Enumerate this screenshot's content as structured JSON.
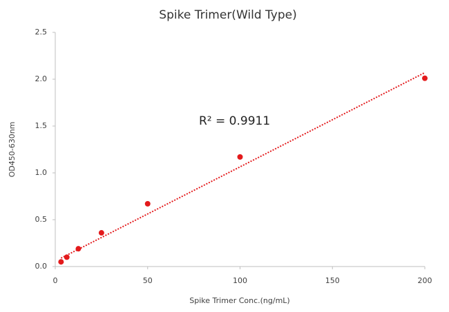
{
  "chart_data": {
    "type": "scatter",
    "title": "Spike Trimer(Wild Type)",
    "x_label": "Spike Trimer Conc.(ng/mL)",
    "y_label": "OD450-630nm",
    "annotation": "R² = 0.9911",
    "series": [
      {
        "color": "#e31a1c",
        "x": [
          3.125,
          6.25,
          12.5,
          25,
          50,
          100,
          200
        ],
        "values": [
          0.05,
          0.1,
          0.19,
          0.36,
          0.67,
          1.17,
          2.01
        ]
      }
    ],
    "trendline": {
      "color": "#e31a1c",
      "x": [
        3.125,
        200
      ],
      "values": [
        0.09,
        2.07
      ]
    },
    "xlim": [
      0,
      200
    ],
    "xticks": [
      0,
      50,
      100,
      150,
      200
    ],
    "ylim": [
      0,
      2.5
    ],
    "yticks": [
      {
        "value": 0,
        "label": "0.0"
      },
      {
        "value": 0.5,
        "label": "0.5"
      },
      {
        "value": 1,
        "label": "1.0"
      },
      {
        "value": 1.5,
        "label": "1.5"
      },
      {
        "value": 2,
        "label": "2.0"
      },
      {
        "value": 2.5,
        "label": "2.5"
      }
    ]
  }
}
